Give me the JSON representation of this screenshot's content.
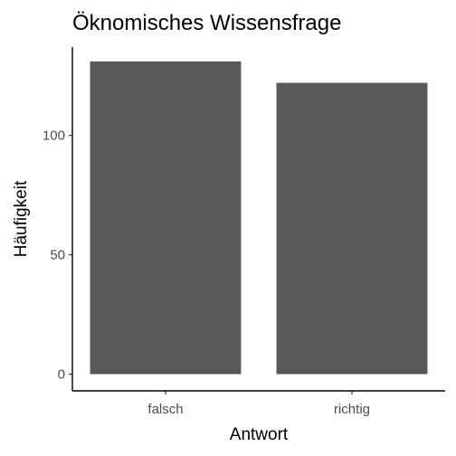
{
  "chart_data": {
    "type": "bar",
    "title": "Öknomisches Wissensfrage",
    "xlabel": "Antwort",
    "ylabel": "Häufigkeit",
    "categories": [
      "falsch",
      "richtig"
    ],
    "values": [
      131,
      122
    ],
    "ylim": [
      -7,
      137
    ],
    "yticks": [
      0,
      50,
      100
    ],
    "grid": false,
    "legend": "none",
    "bar_color": "#595959",
    "axis_color": "#000000"
  }
}
